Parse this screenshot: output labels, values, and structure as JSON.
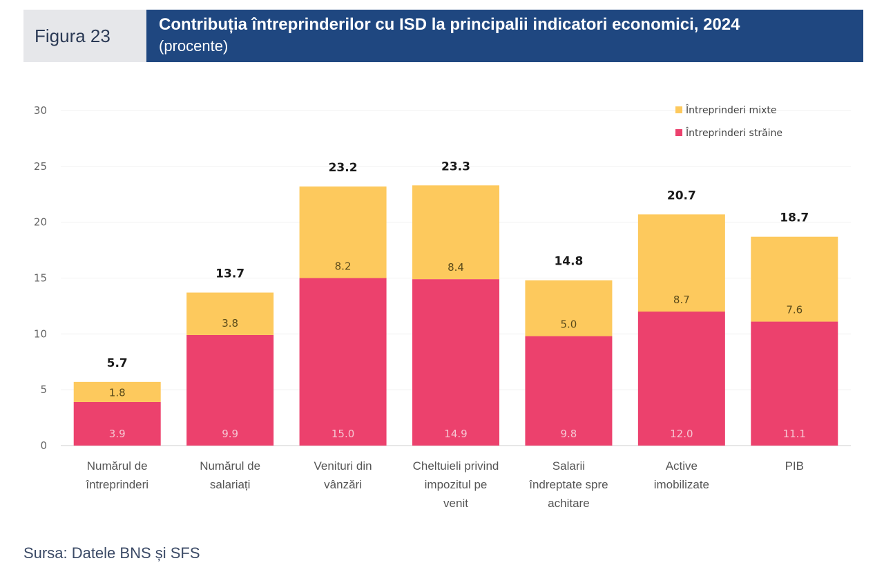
{
  "header": {
    "figure_label": "Figura 23",
    "title": "Contribuția întreprinderilor cu ISD la principalii indicatori economici, 2024",
    "subtitle": "(procente)"
  },
  "source": "Sursa: Datele BNS și SFS",
  "colors": {
    "header_bg": "#1f4780",
    "label_bg": "#e6e7ea",
    "mixte": "#fdc95d",
    "straine": "#ec416d"
  },
  "chart_data": {
    "type": "bar",
    "stacked": true,
    "title": "Contribuția întreprinderilor cu ISD la principalii indicatori economici, 2024",
    "subtitle": "(procente)",
    "xlabel": "",
    "ylabel": "",
    "ylim": [
      0,
      30
    ],
    "yticks": [
      0,
      5,
      10,
      15,
      20,
      25,
      30
    ],
    "grid": true,
    "legend_position": "top-right",
    "categories": [
      [
        "Numărul de",
        "întreprinderi"
      ],
      [
        "Numărul de",
        "salariați"
      ],
      [
        "Venituri din",
        "vânzări"
      ],
      [
        "Cheltuieli privind",
        "impozitul pe",
        "venit"
      ],
      [
        "Salarii",
        "îndreptate spre",
        "achitare"
      ],
      [
        "Active",
        "imobilizate"
      ],
      [
        "PIB"
      ]
    ],
    "series": [
      {
        "name": "Întreprinderi străine",
        "color": "#ec416d",
        "values": [
          3.9,
          9.9,
          15.0,
          14.9,
          9.8,
          12.0,
          11.1
        ]
      },
      {
        "name": "Întreprinderi mixte",
        "color": "#fdc95d",
        "values": [
          1.8,
          3.8,
          8.2,
          8.4,
          5.0,
          8.7,
          7.6
        ]
      }
    ],
    "totals": [
      5.7,
      13.7,
      23.2,
      23.3,
      14.8,
      20.7,
      18.7
    ],
    "legend": [
      "Întreprinderi mixte",
      "Întreprinderi străine"
    ]
  }
}
